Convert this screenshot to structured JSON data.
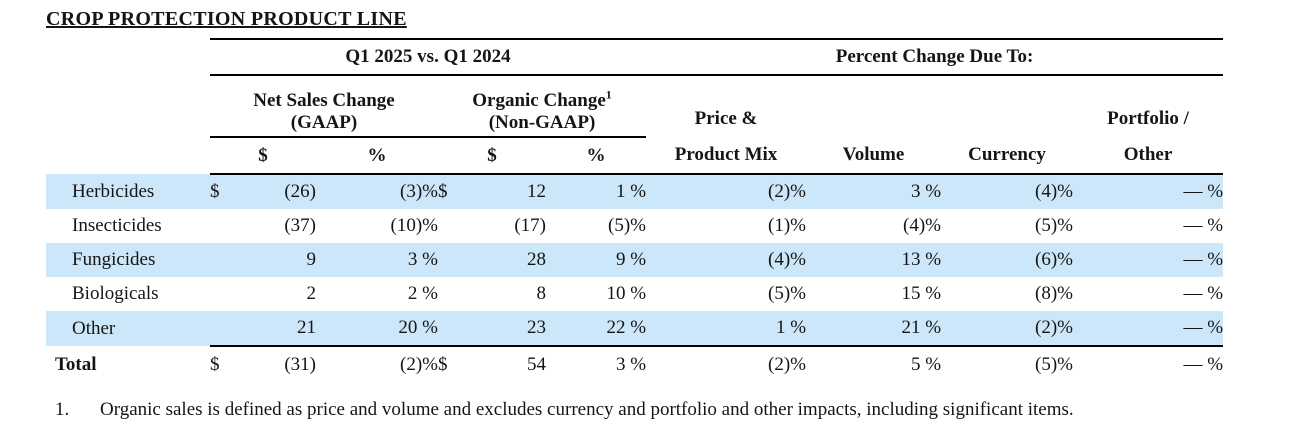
{
  "page": {
    "title": "CROP PROTECTION PRODUCT LINE",
    "highlight_color": "#cce7f9",
    "text_color": "#151515"
  },
  "table": {
    "group_headers": {
      "left": "Q1 2025 vs. Q1 2024",
      "right": "Percent Change Due To:"
    },
    "subgroup_headers": {
      "net_sales_line1": "Net Sales Change",
      "net_sales_line2": "(GAAP)",
      "organic_line1": "Organic Change",
      "organic_superscript": "1",
      "organic_line2": "(Non-GAAP)",
      "price_line1": "Price &",
      "portfolio_line1": "Portfolio /"
    },
    "column_headers": {
      "dollar1": "$",
      "pct1": "%",
      "dollar2": "$",
      "pct2": "%",
      "price_line2": "Product Mix",
      "volume": "Volume",
      "currency": "Currency",
      "portfolio_line2": "Other"
    },
    "rows": [
      {
        "label": "Herbicides",
        "ds1": "$",
        "gaap_d": "(26)",
        "gaap_p": "(3)%",
        "ds2": "$",
        "org_d": "12",
        "org_p": "1 %",
        "price": "(2)%",
        "volume": "3 %",
        "currency": "(4)%",
        "portfolio": "— %"
      },
      {
        "label": "Insecticides",
        "ds1": "",
        "gaap_d": "(37)",
        "gaap_p": "(10)%",
        "ds2": "",
        "org_d": "(17)",
        "org_p": "(5)%",
        "price": "(1)%",
        "volume": "(4)%",
        "currency": "(5)%",
        "portfolio": "— %"
      },
      {
        "label": "Fungicides",
        "ds1": "",
        "gaap_d": "9",
        "gaap_p": "3 %",
        "ds2": "",
        "org_d": "28",
        "org_p": "9 %",
        "price": "(4)%",
        "volume": "13 %",
        "currency": "(6)%",
        "portfolio": "— %"
      },
      {
        "label": "Biologicals",
        "ds1": "",
        "gaap_d": "2",
        "gaap_p": "2 %",
        "ds2": "",
        "org_d": "8",
        "org_p": "10 %",
        "price": "(5)%",
        "volume": "15 %",
        "currency": "(8)%",
        "portfolio": "— %"
      },
      {
        "label": "Other",
        "ds1": "",
        "gaap_d": "21",
        "gaap_p": "20 %",
        "ds2": "",
        "org_d": "23",
        "org_p": "22 %",
        "price": "1 %",
        "volume": "21 %",
        "currency": "(2)%",
        "portfolio": "— %"
      }
    ],
    "total_row": {
      "label": "Total",
      "ds1": "$",
      "gaap_d": "(31)",
      "gaap_p": "(2)%",
      "ds2": "$",
      "org_d": "54",
      "org_p": "3 %",
      "price": "(2)%",
      "volume": "5 %",
      "currency": "(5)%",
      "portfolio": "— %"
    }
  },
  "footnote": {
    "number": "1.",
    "text": "Organic sales is defined as price and volume and excludes currency and portfolio and other impacts, including significant items."
  }
}
